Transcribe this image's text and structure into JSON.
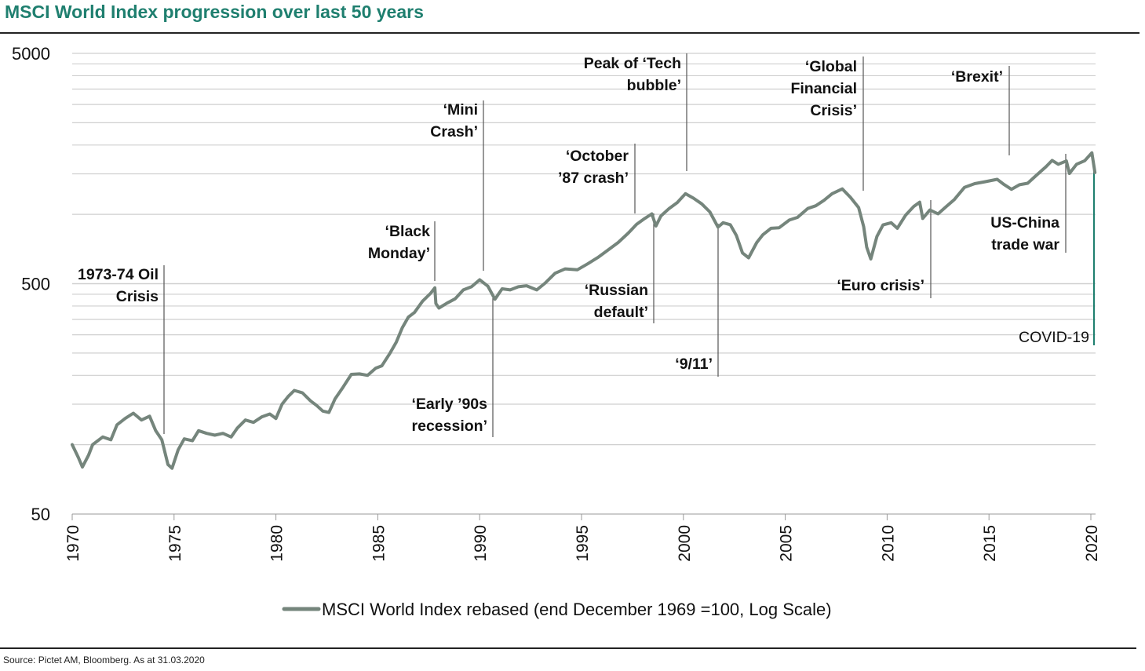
{
  "page": {
    "title": "MSCI World  Index progression over last 50 years",
    "source": "Source: Pictet AM, Bloomberg. As at 31.03.2020"
  },
  "colors": {
    "line": "#75857c",
    "grid": "#cfcfcf",
    "title": "#1f7f6f",
    "covid": "#a52a2a",
    "covid_line": "#1f7f6f",
    "leader": "#555555"
  },
  "chart_data": {
    "type": "line",
    "title": "MSCI World  Index progression over last 50 years",
    "xlabel": "",
    "ylabel": "",
    "y_scale": "log",
    "ylim": [
      50,
      5000
    ],
    "xlim": [
      1970,
      2020.2
    ],
    "grid": true,
    "legend_position": "bottom",
    "y_ticks": [
      {
        "value": 50,
        "label": "50"
      },
      {
        "value": 500,
        "label": "500"
      },
      {
        "value": 5000,
        "label": "5000"
      }
    ],
    "x_ticks": [
      {
        "value": 1970,
        "label": "1970"
      },
      {
        "value": 1975,
        "label": "1975"
      },
      {
        "value": 1980,
        "label": "1980"
      },
      {
        "value": 1985,
        "label": "1985"
      },
      {
        "value": 1990,
        "label": "1990"
      },
      {
        "value": 1995,
        "label": "1995"
      },
      {
        "value": 2000,
        "label": "2000"
      },
      {
        "value": 2005,
        "label": "2005"
      },
      {
        "value": 2010,
        "label": "2010"
      },
      {
        "value": 2015,
        "label": "2015"
      },
      {
        "value": 2020,
        "label": "2020"
      }
    ],
    "series": [
      {
        "name": "MSCI World Index rebased (end December 1969 =100, Log Scale)",
        "points": [
          [
            1970.0,
            100
          ],
          [
            1970.3,
            88
          ],
          [
            1970.5,
            80
          ],
          [
            1970.8,
            90
          ],
          [
            1971.0,
            100
          ],
          [
            1971.5,
            108
          ],
          [
            1971.9,
            105
          ],
          [
            1972.2,
            122
          ],
          [
            1972.6,
            130
          ],
          [
            1973.0,
            137
          ],
          [
            1973.4,
            128
          ],
          [
            1973.8,
            133
          ],
          [
            1974.1,
            115
          ],
          [
            1974.4,
            105
          ],
          [
            1974.7,
            82
          ],
          [
            1974.9,
            79
          ],
          [
            1975.2,
            95
          ],
          [
            1975.5,
            106
          ],
          [
            1975.9,
            104
          ],
          [
            1976.2,
            115
          ],
          [
            1976.6,
            112
          ],
          [
            1977.0,
            110
          ],
          [
            1977.4,
            112
          ],
          [
            1977.8,
            108
          ],
          [
            1978.1,
            118
          ],
          [
            1978.5,
            128
          ],
          [
            1978.9,
            125
          ],
          [
            1979.3,
            132
          ],
          [
            1979.7,
            136
          ],
          [
            1980.0,
            130
          ],
          [
            1980.3,
            150
          ],
          [
            1980.6,
            162
          ],
          [
            1980.9,
            172
          ],
          [
            1981.3,
            168
          ],
          [
            1981.7,
            155
          ],
          [
            1982.0,
            148
          ],
          [
            1982.3,
            140
          ],
          [
            1982.6,
            138
          ],
          [
            1982.9,
            158
          ],
          [
            1983.3,
            178
          ],
          [
            1983.7,
            202
          ],
          [
            1984.1,
            203
          ],
          [
            1984.5,
            200
          ],
          [
            1984.9,
            215
          ],
          [
            1985.2,
            220
          ],
          [
            1985.6,
            250
          ],
          [
            1985.9,
            278
          ],
          [
            1986.2,
            322
          ],
          [
            1986.5,
            358
          ],
          [
            1986.8,
            375
          ],
          [
            1987.2,
            420
          ],
          [
            1987.6,
            455
          ],
          [
            1987.8,
            480
          ],
          [
            1987.85,
            410
          ],
          [
            1988.0,
            392
          ],
          [
            1988.4,
            412
          ],
          [
            1988.8,
            430
          ],
          [
            1989.2,
            470
          ],
          [
            1989.6,
            485
          ],
          [
            1990.0,
            520
          ],
          [
            1990.4,
            488
          ],
          [
            1990.75,
            428
          ],
          [
            1991.1,
            475
          ],
          [
            1991.5,
            470
          ],
          [
            1991.9,
            485
          ],
          [
            1992.3,
            490
          ],
          [
            1992.8,
            470
          ],
          [
            1993.2,
            502
          ],
          [
            1993.7,
            555
          ],
          [
            1994.2,
            580
          ],
          [
            1994.8,
            575
          ],
          [
            1995.3,
            610
          ],
          [
            1995.8,
            650
          ],
          [
            1996.3,
            700
          ],
          [
            1996.8,
            755
          ],
          [
            1997.3,
            830
          ],
          [
            1997.7,
            905
          ],
          [
            1998.1,
            960
          ],
          [
            1998.45,
            1005
          ],
          [
            1998.65,
            890
          ],
          [
            1998.9,
            985
          ],
          [
            1999.3,
            1060
          ],
          [
            1999.7,
            1125
          ],
          [
            2000.1,
            1230
          ],
          [
            2000.5,
            1175
          ],
          [
            2000.9,
            1110
          ],
          [
            2001.3,
            1025
          ],
          [
            2001.7,
            880
          ],
          [
            2001.95,
            920
          ],
          [
            2002.3,
            902
          ],
          [
            2002.6,
            810
          ],
          [
            2002.9,
            680
          ],
          [
            2003.2,
            648
          ],
          [
            2003.6,
            755
          ],
          [
            2003.9,
            815
          ],
          [
            2004.3,
            870
          ],
          [
            2004.7,
            875
          ],
          [
            2005.2,
            945
          ],
          [
            2005.6,
            970
          ],
          [
            2006.1,
            1060
          ],
          [
            2006.5,
            1090
          ],
          [
            2006.9,
            1150
          ],
          [
            2007.3,
            1230
          ],
          [
            2007.8,
            1290
          ],
          [
            2008.2,
            1185
          ],
          [
            2008.6,
            1070
          ],
          [
            2008.85,
            885
          ],
          [
            2009.0,
            720
          ],
          [
            2009.2,
            640
          ],
          [
            2009.5,
            802
          ],
          [
            2009.8,
            900
          ],
          [
            2010.2,
            920
          ],
          [
            2010.5,
            870
          ],
          [
            2010.9,
            990
          ],
          [
            2011.3,
            1080
          ],
          [
            2011.6,
            1130
          ],
          [
            2011.75,
            960
          ],
          [
            2012.1,
            1045
          ],
          [
            2012.5,
            1005
          ],
          [
            2012.9,
            1080
          ],
          [
            2013.3,
            1160
          ],
          [
            2013.8,
            1310
          ],
          [
            2014.3,
            1360
          ],
          [
            2014.8,
            1385
          ],
          [
            2015.4,
            1420
          ],
          [
            2015.7,
            1355
          ],
          [
            2016.1,
            1285
          ],
          [
            2016.5,
            1345
          ],
          [
            2016.9,
            1365
          ],
          [
            2017.3,
            1470
          ],
          [
            2017.8,
            1610
          ],
          [
            2018.1,
            1715
          ],
          [
            2018.4,
            1650
          ],
          [
            2018.8,
            1705
          ],
          [
            2018.95,
            1505
          ],
          [
            2019.3,
            1650
          ],
          [
            2019.7,
            1710
          ],
          [
            2020.05,
            1850
          ],
          [
            2020.2,
            1520
          ]
        ]
      }
    ],
    "annotations": [
      {
        "lines": [
          "1973-74 Oil",
          "Crisis"
        ]
      },
      {
        "lines": [
          "‘Black",
          "Monday’"
        ]
      },
      {
        "lines": [
          "‘Mini",
          "Crash’"
        ]
      },
      {
        "lines": [
          "‘Early ’90s",
          "recession’"
        ]
      },
      {
        "lines": [
          "‘October",
          "’87 crash’"
        ]
      },
      {
        "lines": [
          "‘Russian",
          "default’"
        ]
      },
      {
        "lines": [
          "Peak of ‘Tech",
          "bubble’"
        ]
      },
      {
        "lines": [
          "‘9/11’"
        ]
      },
      {
        "lines": [
          "‘Global",
          "Financial",
          "Crisis’"
        ]
      },
      {
        "lines": [
          "‘Euro crisis’"
        ]
      },
      {
        "lines": [
          "‘Brexit’"
        ]
      },
      {
        "lines": [
          "US-China",
          "trade war"
        ]
      },
      {
        "lines": [
          "COVID-19"
        ]
      }
    ]
  }
}
